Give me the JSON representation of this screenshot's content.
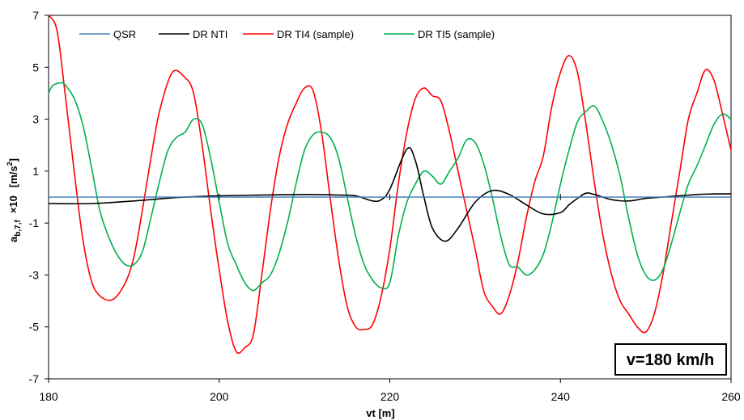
{
  "chart_data": {
    "type": "line",
    "xlabel": "vt [m]",
    "ylabel": {
      "base": "a",
      "sub": "b,7,f",
      "factor": "×10",
      "unit_open": "[m/s",
      "unit_sup": "2",
      "unit_close": "]"
    },
    "xlim": [
      180,
      260
    ],
    "ylim": [
      -7,
      7
    ],
    "x_ticks": [
      180,
      200,
      220,
      240,
      260
    ],
    "y_ticks": [
      7,
      5,
      3,
      1,
      -1,
      -3,
      -5,
      -7
    ],
    "grid": false,
    "legend_position": "top",
    "annotation": "v=180 km/h",
    "series": [
      {
        "name": "QSR",
        "color": "#4a7ebb",
        "points": [
          [
            180,
            0.0
          ],
          [
            260,
            0.0
          ]
        ]
      },
      {
        "name": "DR NTI",
        "color": "#000000",
        "points": [
          [
            180,
            -0.25
          ],
          [
            185,
            -0.25
          ],
          [
            190,
            -0.15
          ],
          [
            195,
            -0.02
          ],
          [
            200,
            0.05
          ],
          [
            205,
            0.08
          ],
          [
            210,
            0.1
          ],
          [
            214,
            0.08
          ],
          [
            216,
            0.05
          ],
          [
            218,
            -0.15
          ],
          [
            219,
            -0.1
          ],
          [
            220,
            0.3
          ],
          [
            222,
            1.85
          ],
          [
            223,
            1.4
          ],
          [
            224,
            0.0
          ],
          [
            225,
            -1.2
          ],
          [
            226.5,
            -1.7
          ],
          [
            228,
            -1.2
          ],
          [
            230,
            -0.2
          ],
          [
            232,
            0.25
          ],
          [
            234,
            0.1
          ],
          [
            236,
            -0.3
          ],
          [
            238,
            -0.65
          ],
          [
            240,
            -0.6
          ],
          [
            241,
            -0.3
          ],
          [
            242,
            -0.05
          ],
          [
            243,
            0.15
          ],
          [
            244,
            0.1
          ],
          [
            246,
            -0.1
          ],
          [
            248,
            -0.15
          ],
          [
            250,
            -0.05
          ],
          [
            252,
            0.0
          ],
          [
            254,
            0.05
          ],
          [
            256,
            0.1
          ],
          [
            258,
            0.12
          ],
          [
            260,
            0.12
          ]
        ]
      },
      {
        "name": "DR TI4  (sample)",
        "color": "#ff0000",
        "points": [
          [
            180,
            7.0
          ],
          [
            181,
            6.4
          ],
          [
            182,
            3.8
          ],
          [
            183,
            1.0
          ],
          [
            184,
            -1.6
          ],
          [
            185,
            -3.2
          ],
          [
            186,
            -3.8
          ],
          [
            187.5,
            -3.95
          ],
          [
            189,
            -3.3
          ],
          [
            190,
            -2.3
          ],
          [
            191,
            -0.5
          ],
          [
            192,
            1.5
          ],
          [
            193,
            3.3
          ],
          [
            194.5,
            4.8
          ],
          [
            196,
            4.6
          ],
          [
            197,
            4.0
          ],
          [
            198,
            2.0
          ],
          [
            199,
            -0.5
          ],
          [
            200,
            -2.8
          ],
          [
            201,
            -4.8
          ],
          [
            202,
            -5.95
          ],
          [
            203,
            -5.8
          ],
          [
            204,
            -5.3
          ],
          [
            205,
            -3.0
          ],
          [
            206,
            -0.5
          ],
          [
            207,
            1.5
          ],
          [
            208,
            2.8
          ],
          [
            209,
            3.6
          ],
          [
            210,
            4.2
          ],
          [
            211,
            4.1
          ],
          [
            212,
            2.5
          ],
          [
            213,
            0.0
          ],
          [
            214,
            -2.4
          ],
          [
            215,
            -4.2
          ],
          [
            216,
            -5.0
          ],
          [
            217,
            -5.1
          ],
          [
            218,
            -4.9
          ],
          [
            219,
            -3.8
          ],
          [
            220,
            -2.0
          ],
          [
            221,
            0.5
          ],
          [
            222,
            2.5
          ],
          [
            223,
            3.8
          ],
          [
            224,
            4.2
          ],
          [
            225,
            3.9
          ],
          [
            226,
            3.7
          ],
          [
            227,
            2.5
          ],
          [
            228,
            1.0
          ],
          [
            229,
            -0.5
          ],
          [
            230,
            -2.0
          ],
          [
            231,
            -3.6
          ],
          [
            232,
            -4.2
          ],
          [
            233,
            -4.5
          ],
          [
            234,
            -3.8
          ],
          [
            235,
            -2.5
          ],
          [
            236,
            -0.8
          ],
          [
            237,
            0.6
          ],
          [
            238,
            1.6
          ],
          [
            239,
            3.5
          ],
          [
            240,
            4.8
          ],
          [
            241,
            5.45
          ],
          [
            242,
            4.8
          ],
          [
            243,
            2.8
          ],
          [
            244,
            0.5
          ],
          [
            245,
            -1.5
          ],
          [
            246,
            -3.0
          ],
          [
            247,
            -4.0
          ],
          [
            248,
            -4.5
          ],
          [
            249,
            -5.0
          ],
          [
            250,
            -5.2
          ],
          [
            251,
            -4.5
          ],
          [
            252,
            -3.0
          ],
          [
            253,
            -1.0
          ],
          [
            254,
            1.0
          ],
          [
            255,
            3.0
          ],
          [
            256,
            4.0
          ],
          [
            257,
            4.9
          ],
          [
            258,
            4.5
          ],
          [
            259,
            3.2
          ],
          [
            260,
            1.8
          ]
        ]
      },
      {
        "name": "DR TI5  (sample)",
        "color": "#00b050",
        "points": [
          [
            180,
            4.0
          ],
          [
            180.5,
            4.3
          ],
          [
            181.5,
            4.4
          ],
          [
            182,
            4.3
          ],
          [
            183,
            3.8
          ],
          [
            184,
            2.8
          ],
          [
            185,
            1.2
          ],
          [
            186,
            -0.5
          ],
          [
            187,
            -1.5
          ],
          [
            188,
            -2.2
          ],
          [
            189,
            -2.6
          ],
          [
            190,
            -2.6
          ],
          [
            191,
            -2.1
          ],
          [
            192,
            -0.8
          ],
          [
            193,
            0.6
          ],
          [
            194,
            1.8
          ],
          [
            195,
            2.3
          ],
          [
            196,
            2.5
          ],
          [
            197,
            3.0
          ],
          [
            198,
            2.8
          ],
          [
            199,
            1.5
          ],
          [
            200,
            -0.2
          ],
          [
            201,
            -1.8
          ],
          [
            202,
            -2.6
          ],
          [
            203,
            -3.3
          ],
          [
            204,
            -3.6
          ],
          [
            205,
            -3.3
          ],
          [
            206,
            -3.0
          ],
          [
            207,
            -2.2
          ],
          [
            208,
            -1.0
          ],
          [
            209,
            0.5
          ],
          [
            210,
            1.8
          ],
          [
            211,
            2.4
          ],
          [
            212,
            2.5
          ],
          [
            213,
            2.3
          ],
          [
            214,
            1.5
          ],
          [
            215,
            0.0
          ],
          [
            216,
            -1.5
          ],
          [
            217,
            -2.6
          ],
          [
            218,
            -3.2
          ],
          [
            219,
            -3.5
          ],
          [
            220,
            -3.3
          ],
          [
            221,
            -1.5
          ],
          [
            222,
            -0.2
          ],
          [
            223,
            0.5
          ],
          [
            224,
            1.0
          ],
          [
            225,
            0.8
          ],
          [
            226,
            0.5
          ],
          [
            227,
            1.0
          ],
          [
            228,
            1.5
          ],
          [
            229,
            2.2
          ],
          [
            230,
            2.1
          ],
          [
            231,
            1.3
          ],
          [
            232,
            0.0
          ],
          [
            233,
            -1.5
          ],
          [
            234,
            -2.6
          ],
          [
            235,
            -2.7
          ],
          [
            236,
            -3.0
          ],
          [
            237,
            -2.8
          ],
          [
            238,
            -2.2
          ],
          [
            239,
            -1.0
          ],
          [
            240,
            0.5
          ],
          [
            241,
            1.8
          ],
          [
            242,
            2.9
          ],
          [
            243,
            3.3
          ],
          [
            244,
            3.5
          ],
          [
            245,
            2.9
          ],
          [
            246,
            2.0
          ],
          [
            247,
            0.8
          ],
          [
            248,
            -0.8
          ],
          [
            249,
            -2.2
          ],
          [
            250,
            -3.0
          ],
          [
            251,
            -3.2
          ],
          [
            252,
            -2.8
          ],
          [
            253,
            -1.8
          ],
          [
            254,
            -0.6
          ],
          [
            255,
            0.5
          ],
          [
            256,
            1.2
          ],
          [
            257,
            2.0
          ],
          [
            258,
            2.8
          ],
          [
            259,
            3.2
          ],
          [
            260,
            3.0
          ]
        ]
      }
    ]
  }
}
